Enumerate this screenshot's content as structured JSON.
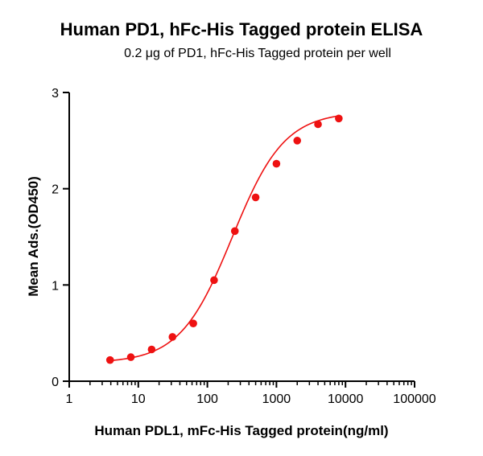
{
  "chart_data": {
    "type": "scatter",
    "title": "Human PD1, hFc-His Tagged protein ELISA",
    "subtitle": "0.2 μg of PD1, hFc-His Tagged protein per well",
    "xlabel": "Human PDL1, mFc-His Tagged protein(ng/ml)",
    "ylabel": "Mean Ads.(OD450)",
    "x_scale": "log10",
    "xlim": [
      1,
      100000
    ],
    "ylim": [
      0,
      3
    ],
    "x_ticks": [
      "1",
      "10",
      "100",
      "1000",
      "10000",
      "100000"
    ],
    "y_ticks": [
      "0",
      "1",
      "2",
      "3"
    ],
    "grid": false,
    "legend": "none",
    "series": [
      {
        "x": [
          3.9,
          7.8,
          15.6,
          31.25,
          62.5,
          125,
          250,
          500,
          1000,
          2000,
          4000,
          8000
        ],
        "y": [
          0.22,
          0.25,
          0.33,
          0.46,
          0.6,
          1.05,
          1.56,
          1.91,
          2.26,
          2.5,
          2.67,
          2.73
        ],
        "color": "#ee1111",
        "fit": "4PL"
      }
    ]
  }
}
